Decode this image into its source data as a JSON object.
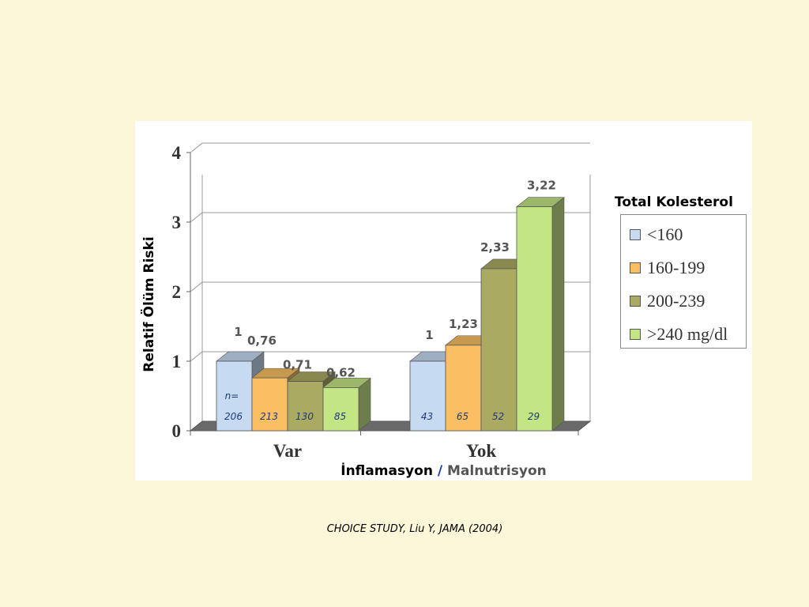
{
  "chart_data": {
    "type": "bar",
    "title": "",
    "categories": [
      "Var",
      "Yok"
    ],
    "series": [
      {
        "name": "<160",
        "values": [
          1,
          1
        ],
        "value_labels": [
          "1",
          "1"
        ],
        "n": [
          "206",
          "43"
        ],
        "color": "#c6dbf1"
      },
      {
        "name": "160-199",
        "values": [
          0.76,
          1.23
        ],
        "value_labels": [
          "0,76",
          "1,23"
        ],
        "n": [
          "213",
          "65"
        ],
        "color": "#f9bf62"
      },
      {
        "name": "200-239",
        "values": [
          0.71,
          2.33
        ],
        "value_labels": [
          "0,71",
          "2,33"
        ],
        "n": [
          "130",
          "52"
        ],
        "color": "#abaa63"
      },
      {
        "name": ">240 mg/dl",
        "values": [
          0.62,
          3.22
        ],
        "value_labels": [
          "0,62",
          "3,22"
        ],
        "n": [
          "85",
          "29"
        ],
        "color": "#c4e584"
      }
    ],
    "n_prefix": "n=",
    "ylim": [
      0,
      4
    ],
    "yticks": [
      0,
      1,
      2,
      3,
      4
    ],
    "ylabel": "Relatif Ölüm Riski",
    "xlabel_parts": [
      "İnflamasyon",
      "/",
      "Malnutrisyon"
    ],
    "legend_title": "Total Kolesterol",
    "legend_position": "right",
    "grid": true
  },
  "footer": {
    "source": "CHOICE STUDY, Liu Y, JAMA (2004)"
  }
}
